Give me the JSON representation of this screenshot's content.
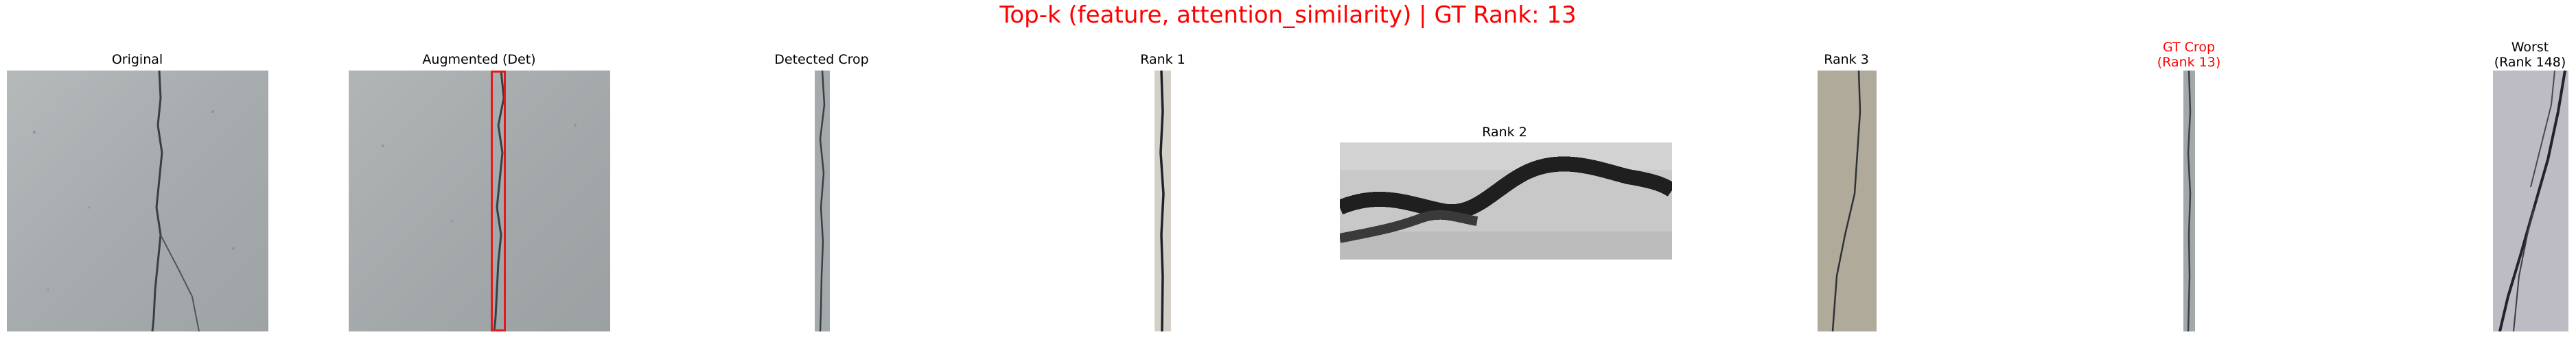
{
  "figure": {
    "suptitle": "Top-k (feature, attention_similarity) | GT Rank: 13",
    "suptitle_color": "#ff0000"
  },
  "panels": [
    {
      "id": "original",
      "title": "Original"
    },
    {
      "id": "augmented",
      "title": "Augmented (Det)"
    },
    {
      "id": "detected-crop",
      "title": "Detected Crop"
    },
    {
      "id": "rank-1",
      "title": "Rank 1"
    },
    {
      "id": "rank-2",
      "title": "Rank 2"
    },
    {
      "id": "rank-3",
      "title": "Rank 3"
    },
    {
      "id": "gt-crop",
      "title_line1": "GT Crop",
      "title_line2": "(Rank 13)",
      "title_color": "#ff0000"
    },
    {
      "id": "worst",
      "title_line1": "Worst",
      "title_line2": "(Rank 148)"
    }
  ],
  "colors": {
    "detection_box": "#e31a1c",
    "concrete": "#a7adae",
    "crack": "#3a3f44"
  }
}
